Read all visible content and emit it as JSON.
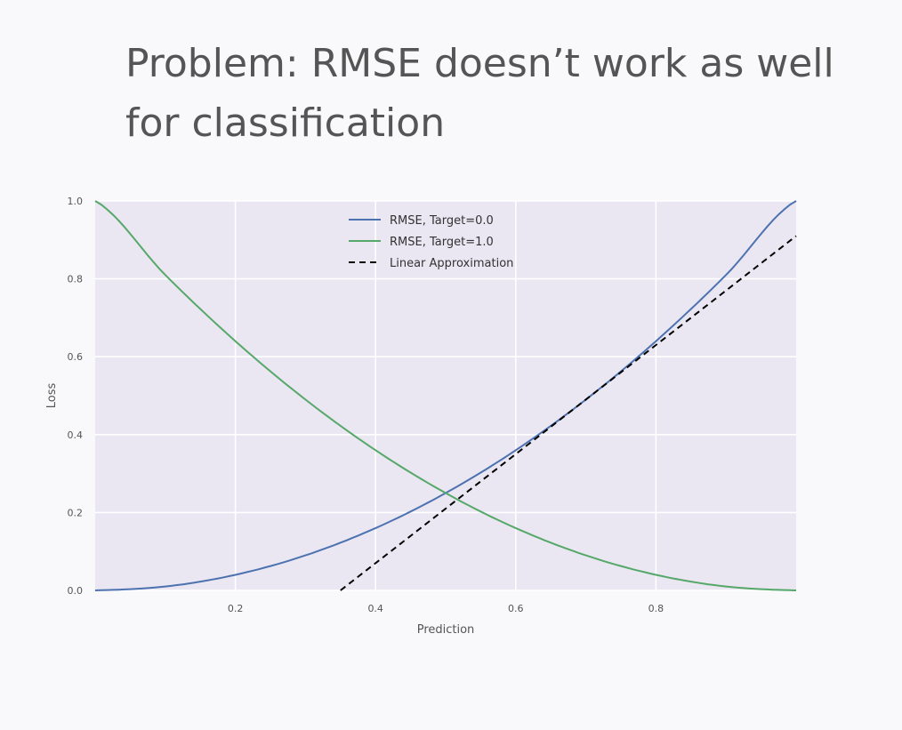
{
  "slide": {
    "title": "Problem: RMSE doesn’t work as well for classification"
  },
  "chart_data": {
    "type": "line",
    "xlabel": "Prediction",
    "ylabel": "Loss",
    "xlim": [
      0,
      1
    ],
    "ylim": [
      0,
      1
    ],
    "x_ticks": [
      "0.2",
      "0.4",
      "0.6",
      "0.8"
    ],
    "x_tick_values": [
      0.2,
      0.4,
      0.6,
      0.8
    ],
    "y_ticks": [
      "0.0",
      "0.2",
      "0.4",
      "0.6",
      "0.8",
      "1.0"
    ],
    "y_tick_values": [
      0.0,
      0.2,
      0.4,
      0.6,
      0.8,
      1.0
    ],
    "grid": true,
    "legend_position": "top-center",
    "series": [
      {
        "name": "RMSE, Target=0.0",
        "color": "#4c72b0",
        "style": "solid",
        "x": [
          0,
          0.1,
          0.2,
          0.3,
          0.4,
          0.5,
          0.6,
          0.7,
          0.8,
          0.9,
          1.0
        ],
        "y": [
          0,
          0.01,
          0.04,
          0.09,
          0.16,
          0.25,
          0.36,
          0.49,
          0.64,
          0.81,
          1.0
        ]
      },
      {
        "name": "RMSE, Target=1.0",
        "color": "#55a868",
        "style": "solid",
        "x": [
          0,
          0.1,
          0.2,
          0.3,
          0.4,
          0.5,
          0.6,
          0.7,
          0.8,
          0.9,
          1.0
        ],
        "y": [
          1.0,
          0.81,
          0.64,
          0.49,
          0.36,
          0.25,
          0.16,
          0.09,
          0.04,
          0.01,
          0
        ]
      },
      {
        "name": "Linear Approximation",
        "color": "#000000",
        "style": "dashed",
        "x": [
          0.35,
          1.0
        ],
        "y": [
          0,
          0.91
        ]
      }
    ]
  }
}
